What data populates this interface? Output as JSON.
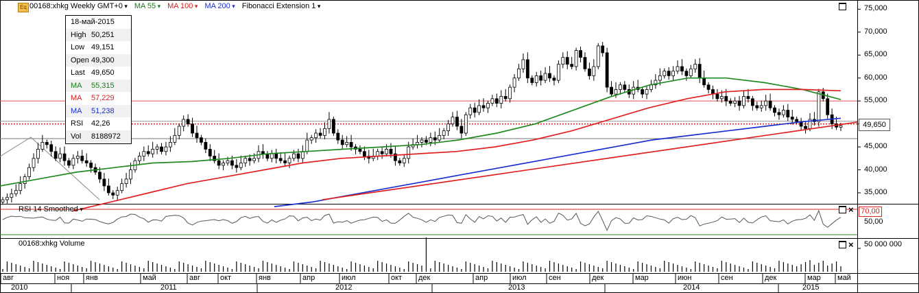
{
  "header": {
    "symbol_icon": "Eq",
    "symbol": "00168:xhkg Weekly GMT+0",
    "ma55": "MA 55",
    "ma100": "MA 100",
    "ma200": "MA 200",
    "fibo": "Fibonacci Extension 1"
  },
  "info_box": [
    {
      "k": "18-май-2015",
      "v": "",
      "color": "#000000"
    },
    {
      "k": "High",
      "v": "50,251",
      "color": "#000000"
    },
    {
      "k": "Low",
      "v": "49,151",
      "color": "#000000"
    },
    {
      "k": "Open",
      "v": "49,300",
      "color": "#000000"
    },
    {
      "k": "Last",
      "v": "49,650",
      "color": "#000000"
    },
    {
      "k": "MA",
      "v": "55,315",
      "color": "#1a7a1a"
    },
    {
      "k": "MA",
      "v": "57,229",
      "color": "#d42020"
    },
    {
      "k": "MA",
      "v": "51,238",
      "color": "#1a2fd0"
    },
    {
      "k": "RSI",
      "v": "42,26",
      "color": "#000000"
    },
    {
      "k": "Vol",
      "v": "8188972",
      "color": "#000000"
    }
  ],
  "price_axis": {
    "ticks": [
      "75,000",
      "70,000",
      "65,000",
      "60,000",
      "55,000",
      "50,000",
      "45,000",
      "40,000",
      "35,000"
    ],
    "last_price": "49,650"
  },
  "rsi_pane": {
    "title": "RSI 14 Smoothed",
    "ticks": [
      "70,00",
      "50,00"
    ]
  },
  "volume_pane": {
    "title": "00168:xhkg Volume",
    "ticks": [
      "50 000 000"
    ]
  },
  "time_axis": {
    "months": [
      "авг",
      "ноя",
      "янв",
      "май",
      "авг",
      "окт",
      "янв",
      "апр",
      "июл",
      "окт",
      "дек",
      "апр",
      "июл",
      "сен",
      "дек",
      "мар",
      "июн",
      "сен",
      "дек",
      "мар",
      "май"
    ],
    "years": [
      "2010",
      "2011",
      "2012",
      "2013",
      "2014",
      "2015"
    ]
  },
  "chart_data": {
    "type": "candlestick",
    "x_range": [
      "2010-07",
      "2015-05"
    ],
    "ylim": [
      31000,
      76500
    ],
    "weekly_close_approx": [
      33500,
      34000,
      34800,
      35500,
      37000,
      38500,
      40500,
      42500,
      44500,
      46000,
      45500,
      44000,
      42500,
      43500,
      42000,
      41000,
      42500,
      43000,
      42000,
      41500,
      40500,
      39500,
      38000,
      36500,
      35000,
      34500,
      35500,
      37000,
      38000,
      40000,
      42000,
      43000,
      44000,
      43500,
      44500,
      45000,
      44000,
      45000,
      46000,
      47500,
      49500,
      51000,
      50000,
      48000,
      47000,
      46000,
      44500,
      43000,
      42000,
      41000,
      41500,
      42000,
      41000,
      40500,
      41500,
      42500,
      42000,
      42500,
      44000,
      43500,
      42500,
      43500,
      42500,
      42000,
      41500,
      42500,
      43500,
      42500,
      44000,
      46500,
      47000,
      48000,
      47500,
      49000,
      51000,
      48000,
      46500,
      45500,
      46000,
      45000,
      44500,
      44000,
      43000,
      42500,
      43000,
      44000,
      43500,
      44500,
      43500,
      42000,
      41500,
      42500,
      45000,
      45500,
      46000,
      46500,
      46000,
      47000,
      46500,
      47500,
      48500,
      50000,
      51500,
      49500,
      48000,
      52000,
      53500,
      52500,
      54000,
      53500,
      54500,
      55500,
      54500,
      56000,
      55500,
      58000,
      60000,
      62000,
      64000,
      60000,
      59000,
      60500,
      59500,
      61000,
      60000,
      59500,
      63000,
      64500,
      63000,
      62500,
      66000,
      64500,
      62000,
      60500,
      62500,
      67000,
      65500,
      58000,
      56500,
      57500,
      58500,
      57500,
      56500,
      58000,
      57500,
      56500,
      57500,
      58500,
      59500,
      60500,
      61500,
      60500,
      61500,
      62500,
      61500,
      60500,
      62000,
      63000,
      60000,
      58500,
      57500,
      56500,
      55500,
      56000,
      55000,
      54500,
      55000,
      54000,
      56000,
      55500,
      54000,
      53500,
      54000,
      55000,
      53500,
      52500,
      52000,
      53000,
      51500,
      51000,
      50500,
      49500,
      49000,
      51000,
      50500,
      57000,
      55500,
      52000,
      50000,
      49300,
      49650
    ],
    "series": [
      {
        "name": "MA 55",
        "values": [
          36500,
          38000,
          39500,
          40500,
          41500,
          41800,
          42500,
          43500,
          44000,
          44500,
          45000,
          45500,
          46500,
          48000,
          50000,
          53000,
          56000,
          58500,
          60000,
          60000,
          59000,
          57500,
          55315
        ]
      },
      {
        "name": "MA 100",
        "values": [
          31000,
          33000,
          35000,
          37000,
          38500,
          40000,
          41500,
          42500,
          43000,
          43500,
          44000,
          45000,
          46500,
          48500,
          51000,
          53500,
          55500,
          57000,
          57500,
          57500,
          57229
        ]
      },
      {
        "name": "MA 200",
        "values": [
          32000,
          33000,
          34500,
          36000,
          37500,
          39000,
          40500,
          42000,
          43500,
          45000,
          46500,
          47500,
          48500,
          49500,
          50500,
          51238
        ]
      }
    ],
    "fibonacci_levels": [
      55000,
      50600,
      50000,
      46800
    ],
    "rsi": {
      "ylim": [
        30,
        75
      ],
      "overbought": 70,
      "last": 42.26
    },
    "volume": {
      "max_tick": 50000000,
      "last": 8188972
    }
  }
}
